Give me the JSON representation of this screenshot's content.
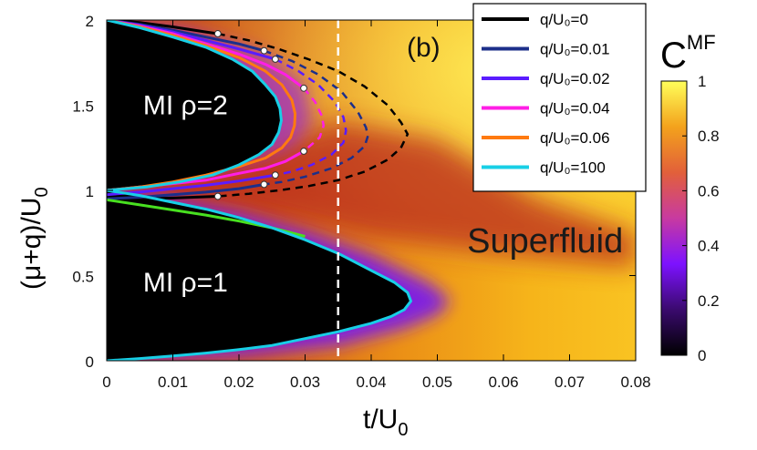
{
  "chart_data": {
    "type": "heatmap",
    "panel_label": "(b)",
    "xlabel": "t/U",
    "xlabel_sub": "0",
    "ylabel": "(μ+q)/U",
    "ylabel_sub": "0",
    "xlim": [
      0,
      0.08
    ],
    "ylim": [
      0,
      2
    ],
    "x_ticks": [
      0,
      0.01,
      0.02,
      0.03,
      0.04,
      0.05,
      0.06,
      0.07,
      0.08
    ],
    "x_tick_labels": [
      "0",
      "0.01",
      "0.02",
      "0.03",
      "0.04",
      "0.05",
      "0.06",
      "0.07",
      "0.08"
    ],
    "y_ticks": [
      0,
      0.5,
      1,
      1.5,
      2
    ],
    "y_tick_labels": [
      "0",
      "0.5",
      "1",
      "1.5",
      "2"
    ],
    "colorbar": {
      "title": "C",
      "title_sup": "MF",
      "range": [
        0,
        1
      ],
      "ticks": [
        0,
        0.2,
        0.4,
        0.6,
        0.8,
        1
      ],
      "tick_labels": [
        "0",
        "0.2",
        "0.4",
        "0.6",
        "0.8",
        "1"
      ],
      "colormap": [
        "#000000",
        "#3a0a6e",
        "#7d12ff",
        "#c83aa0",
        "#e2603a",
        "#f3a21c",
        "#ffff5a"
      ]
    },
    "regions": [
      {
        "label": "MI ρ=2",
        "x": 0.0055,
        "y": 1.5
      },
      {
        "label": "MI ρ=1",
        "x": 0.0055,
        "y": 0.46
      }
    ],
    "annotation": {
      "label": "Superfluid",
      "x": 0.0545,
      "y": 0.7
    },
    "vertical_line": {
      "x": 0.035,
      "color": "#ffffff",
      "style": "dashed"
    },
    "legend": {
      "placement": "top-right"
    },
    "series": [
      {
        "name": "q/U₀=0",
        "color": "#000000",
        "upper": [
          [
            0,
            2
          ],
          [
            0.005,
            1.985
          ],
          [
            0.01,
            1.96
          ],
          [
            0.015,
            1.93
          ],
          [
            0.0168,
            1.92
          ],
          [
            0.0215,
            1.88
          ],
          [
            0.026,
            1.83
          ],
          [
            0.0305,
            1.77
          ],
          [
            0.035,
            1.7
          ],
          [
            0.039,
            1.61
          ],
          [
            0.0425,
            1.5
          ],
          [
            0.0445,
            1.4
          ],
          [
            0.0455,
            1.33
          ]
        ],
        "lower": [
          [
            0.0455,
            1.33
          ],
          [
            0.0445,
            1.25
          ],
          [
            0.0425,
            1.18
          ],
          [
            0.039,
            1.11
          ],
          [
            0.035,
            1.06
          ],
          [
            0.0305,
            1.025
          ],
          [
            0.026,
            1.0
          ],
          [
            0.0215,
            0.98
          ],
          [
            0.0168,
            0.965
          ],
          [
            0.01,
            0.955
          ],
          [
            0.005,
            0.95
          ],
          [
            0,
            0.94
          ]
        ],
        "dash_from_x": 0.0168,
        "markers": [
          [
            0.0168,
            1.92
          ],
          [
            0.0168,
            0.965
          ]
        ]
      },
      {
        "name": "q/U₀=0.01",
        "color": "#1c2f8a",
        "upper": [
          [
            0,
            2
          ],
          [
            0.005,
            1.975
          ],
          [
            0.01,
            1.94
          ],
          [
            0.015,
            1.9
          ],
          [
            0.02,
            1.86
          ],
          [
            0.0238,
            1.82
          ],
          [
            0.028,
            1.76
          ],
          [
            0.032,
            1.68
          ],
          [
            0.0355,
            1.58
          ],
          [
            0.038,
            1.46
          ],
          [
            0.0392,
            1.37
          ],
          [
            0.0395,
            1.32
          ]
        ],
        "lower": [
          [
            0.0395,
            1.32
          ],
          [
            0.039,
            1.26
          ],
          [
            0.037,
            1.19
          ],
          [
            0.034,
            1.13
          ],
          [
            0.03,
            1.08
          ],
          [
            0.0265,
            1.05
          ],
          [
            0.0238,
            1.035
          ],
          [
            0.02,
            1.01
          ],
          [
            0.015,
            0.99
          ],
          [
            0.01,
            0.975
          ],
          [
            0.005,
            0.96
          ],
          [
            0,
            0.95
          ]
        ],
        "dash_from_x": 0.0238,
        "markers": [
          [
            0.0238,
            1.82
          ],
          [
            0.0238,
            1.035
          ]
        ]
      },
      {
        "name": "q/U₀=0.02",
        "color": "#5a1cff",
        "upper": [
          [
            0,
            2
          ],
          [
            0.005,
            1.97
          ],
          [
            0.01,
            1.93
          ],
          [
            0.015,
            1.88
          ],
          [
            0.02,
            1.83
          ],
          [
            0.0255,
            1.77
          ],
          [
            0.029,
            1.7
          ],
          [
            0.032,
            1.62
          ],
          [
            0.0345,
            1.52
          ],
          [
            0.0358,
            1.43
          ],
          [
            0.0362,
            1.35
          ]
        ],
        "lower": [
          [
            0.0362,
            1.35
          ],
          [
            0.0358,
            1.28
          ],
          [
            0.034,
            1.21
          ],
          [
            0.031,
            1.15
          ],
          [
            0.028,
            1.11
          ],
          [
            0.0255,
            1.09
          ],
          [
            0.02,
            1.055
          ],
          [
            0.015,
            1.03
          ],
          [
            0.01,
            1.01
          ],
          [
            0.005,
            0.99
          ],
          [
            0,
            0.975
          ]
        ],
        "dash_from_x": 0.0255,
        "markers": [
          [
            0.0255,
            1.77
          ],
          [
            0.0255,
            1.09
          ]
        ]
      },
      {
        "name": "q/U₀=0.04",
        "color": "#ff1ee6",
        "upper": [
          [
            0,
            2
          ],
          [
            0.005,
            1.965
          ],
          [
            0.01,
            1.92
          ],
          [
            0.015,
            1.86
          ],
          [
            0.02,
            1.8
          ],
          [
            0.024,
            1.74
          ],
          [
            0.027,
            1.68
          ],
          [
            0.0298,
            1.6
          ],
          [
            0.0315,
            1.52
          ],
          [
            0.0325,
            1.44
          ],
          [
            0.0328,
            1.38
          ]
        ],
        "lower": [
          [
            0.0328,
            1.38
          ],
          [
            0.0322,
            1.31
          ],
          [
            0.0298,
            1.23
          ],
          [
            0.027,
            1.17
          ],
          [
            0.024,
            1.13
          ],
          [
            0.02,
            1.1
          ],
          [
            0.015,
            1.06
          ],
          [
            0.01,
            1.04
          ],
          [
            0.005,
            1.02
          ],
          [
            0,
            1.0
          ]
        ],
        "dash_from_x": 0.0298,
        "markers": [
          [
            0.0298,
            1.6
          ],
          [
            0.0298,
            1.23
          ]
        ]
      },
      {
        "name": "q/U₀=0.06",
        "color": "#ff7a10",
        "upper": [
          [
            0,
            2
          ],
          [
            0.005,
            1.96
          ],
          [
            0.01,
            1.91
          ],
          [
            0.015,
            1.85
          ],
          [
            0.02,
            1.78
          ],
          [
            0.024,
            1.7
          ],
          [
            0.0265,
            1.62
          ],
          [
            0.028,
            1.53
          ],
          [
            0.0285,
            1.45
          ],
          [
            0.0284,
            1.38
          ],
          [
            0.0278,
            1.31
          ],
          [
            0.0265,
            1.25
          ],
          [
            0.024,
            1.19
          ],
          [
            0.02,
            1.14
          ],
          [
            0.015,
            1.09
          ],
          [
            0.01,
            1.05
          ],
          [
            0.005,
            1.02
          ],
          [
            0,
            1.0
          ]
        ],
        "lower": [],
        "dash_from_x": null,
        "markers": []
      },
      {
        "name": "q/U₀=100",
        "color": "#18cfe6",
        "upper": [
          [
            0,
            2
          ],
          [
            0.005,
            1.955
          ],
          [
            0.01,
            1.9
          ],
          [
            0.015,
            1.84
          ],
          [
            0.019,
            1.77
          ],
          [
            0.022,
            1.7
          ],
          [
            0.024,
            1.62
          ],
          [
            0.0255,
            1.55
          ],
          [
            0.0262,
            1.48
          ],
          [
            0.0264,
            1.41
          ],
          [
            0.026,
            1.34
          ],
          [
            0.025,
            1.27
          ],
          [
            0.023,
            1.21
          ],
          [
            0.02,
            1.15
          ],
          [
            0.016,
            1.09
          ],
          [
            0.011,
            1.05
          ],
          [
            0.006,
            1.02
          ],
          [
            0,
            1.0
          ]
        ],
        "lower": [
          [
            0,
            1.0
          ],
          [
            0.005,
            0.97
          ],
          [
            0.01,
            0.93
          ],
          [
            0.015,
            0.89
          ],
          [
            0.02,
            0.84
          ],
          [
            0.025,
            0.78
          ],
          [
            0.03,
            0.71
          ],
          [
            0.035,
            0.63
          ],
          [
            0.04,
            0.53
          ],
          [
            0.0435,
            0.46
          ],
          [
            0.0455,
            0.4
          ],
          [
            0.046,
            0.35
          ],
          [
            0.045,
            0.3
          ],
          [
            0.043,
            0.26
          ],
          [
            0.04,
            0.22
          ],
          [
            0.035,
            0.17
          ],
          [
            0.03,
            0.13
          ],
          [
            0.025,
            0.09
          ],
          [
            0.02,
            0.065
          ],
          [
            0.015,
            0.045
          ],
          [
            0.01,
            0.028
          ],
          [
            0.005,
            0.013
          ],
          [
            0,
            0
          ]
        ],
        "dash_from_x": null,
        "markers": []
      },
      {
        "name": "",
        "color": "#48e020",
        "upper": [
          [
            0,
            0.945
          ],
          [
            0.005,
            0.915
          ],
          [
            0.01,
            0.885
          ],
          [
            0.015,
            0.855
          ],
          [
            0.02,
            0.82
          ],
          [
            0.025,
            0.78
          ],
          [
            0.03,
            0.73
          ]
        ],
        "lower": [],
        "dash_from_x": null,
        "markers": []
      }
    ]
  }
}
